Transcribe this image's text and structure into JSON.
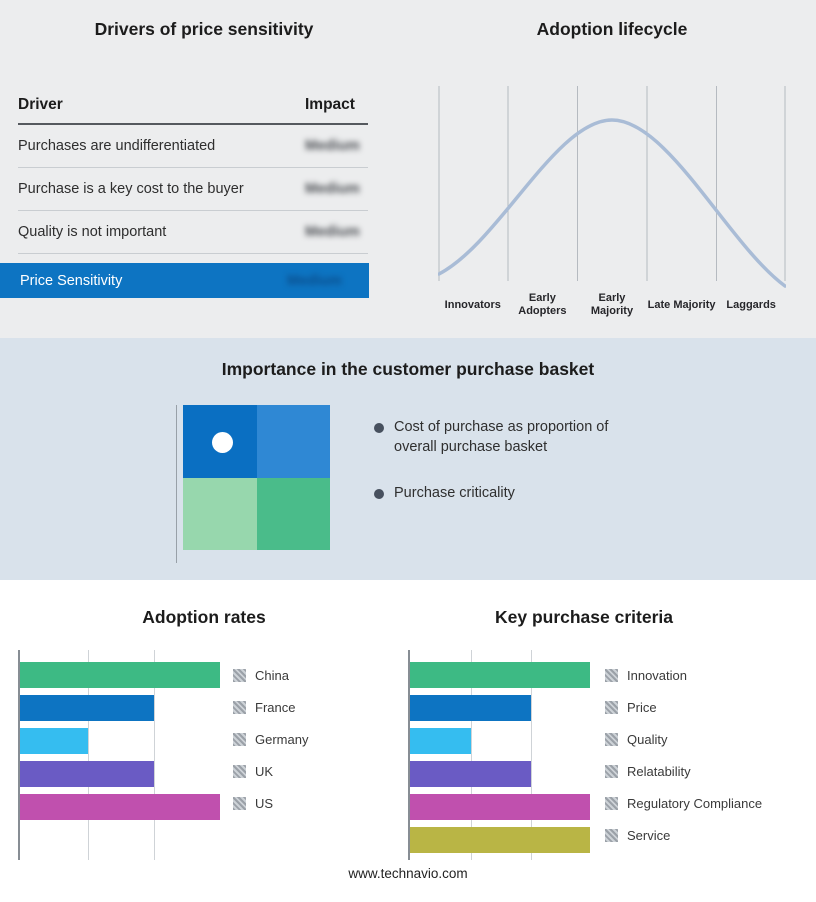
{
  "footer": {
    "url": "www.technavio.com"
  },
  "accent": {
    "highlight_blue": "#0d74c2"
  },
  "basket_section": {
    "title": "Importance in the customer purchase basket",
    "bullets": [
      "Cost of purchase as proportion of overall purchase basket",
      "Purchase criticality"
    ],
    "quadrant_colors": {
      "top_left": "#0a6fc2",
      "top_right": "#2f88d4",
      "bottom_left": "#97d7ad",
      "bottom_right": "#4abc8a"
    }
  },
  "chart_data": [
    {
      "type": "table",
      "title": "Drivers of price sensitivity",
      "columns": [
        "Driver",
        "Impact"
      ],
      "rows": [
        [
          "Purchases are undifferentiated",
          "Medium"
        ],
        [
          "Purchase is a key cost to the buyer",
          "Medium"
        ],
        [
          "Quality is not important",
          "Medium"
        ],
        [
          "Price Sensitivity",
          "Medium"
        ]
      ]
    },
    {
      "type": "line",
      "title": "Adoption lifecycle",
      "categories": [
        "Innovators",
        "Early Adopters",
        "Early Majority",
        "Late Majority",
        "Laggards"
      ],
      "shape": "bell curve peaking at Early Majority",
      "line_color": "#a9bcd6"
    },
    {
      "type": "bar",
      "title": "Adoption rates",
      "orientation": "horizontal",
      "categories": [
        "China",
        "France",
        "Germany",
        "UK",
        "US"
      ],
      "values": [
        100,
        67,
        34,
        67,
        100
      ],
      "xlim": [
        0,
        100
      ],
      "colors": [
        "#3dba84",
        "#0d74c2",
        "#35bdf0",
        "#6a5bc4",
        "#c050ae"
      ],
      "legend_position": "right"
    },
    {
      "type": "bar",
      "title": "Key purchase criteria",
      "orientation": "horizontal",
      "categories": [
        "Innovation",
        "Price",
        "Quality",
        "Relatability",
        "Regulatory Compliance",
        "Service"
      ],
      "values": [
        100,
        67,
        34,
        67,
        100,
        100
      ],
      "xlim": [
        0,
        100
      ],
      "colors": [
        "#3dba84",
        "#0d74c2",
        "#35bdf0",
        "#6a5bc4",
        "#c050ae",
        "#b9b545"
      ],
      "legend_position": "right"
    }
  ]
}
